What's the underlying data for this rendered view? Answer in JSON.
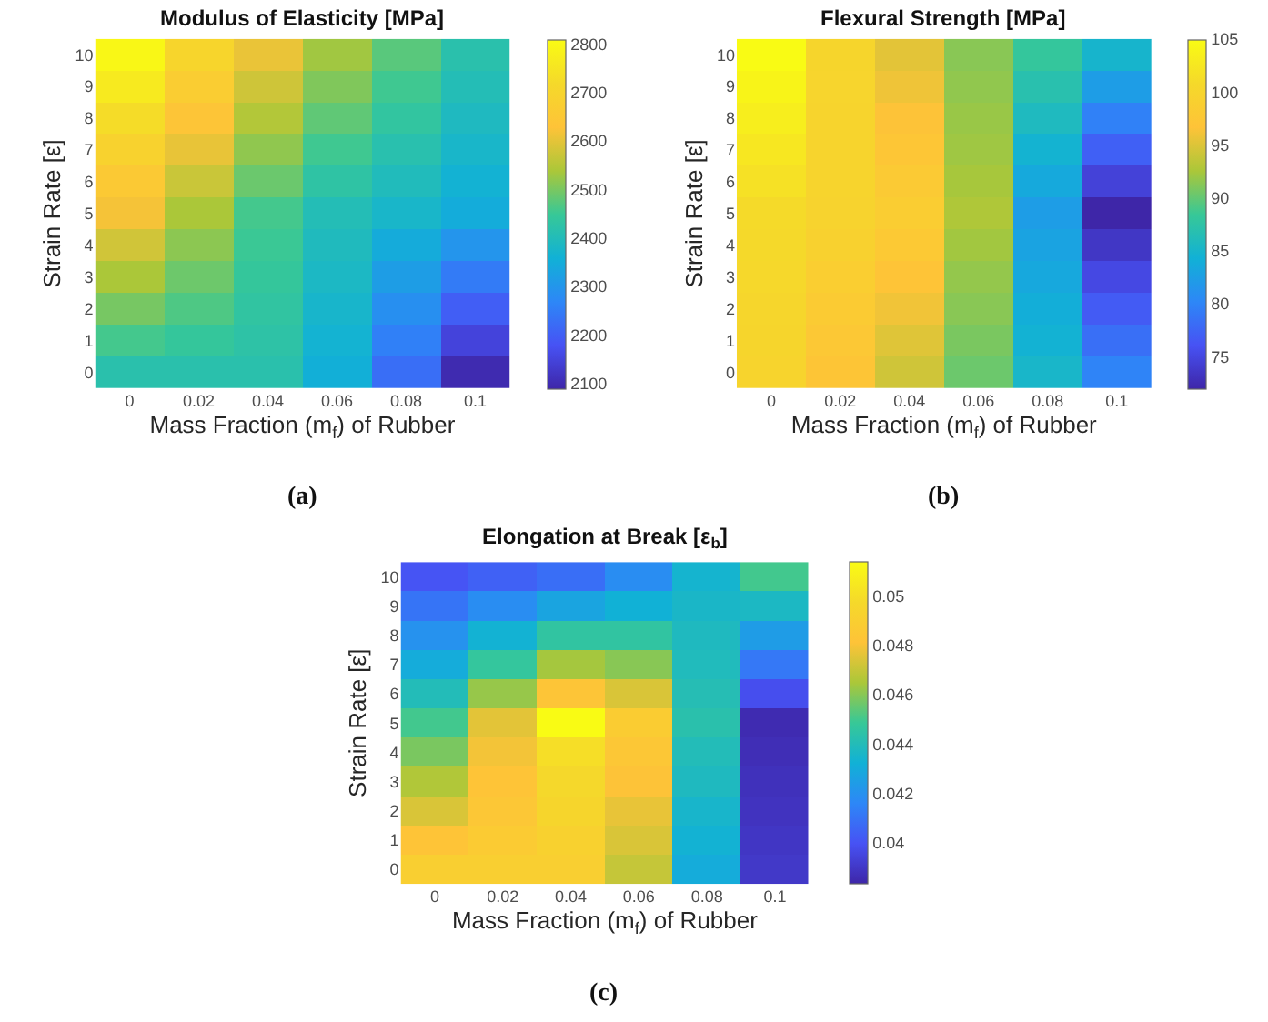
{
  "chart_data": [
    {
      "type": "heatmap",
      "title": "Modulus of Elasticity [MPa]",
      "xlabel": "Mass Fraction (m$_{f}$) of Rubber",
      "ylabel": "Strain Rate [ε̇]",
      "annotations": [
        "(a)"
      ],
      "categories": [
        "0",
        "0.02",
        "0.04",
        "0.06",
        "0.08",
        "0.1"
      ],
      "y_categories": [
        "10",
        "9",
        "8",
        "7",
        "6",
        "5",
        "4",
        "3",
        "2",
        "1",
        "0"
      ],
      "cells": [
        [
          2800,
          2704,
          2608,
          2532,
          2476,
          2420
        ],
        [
          2764,
          2671,
          2578,
          2507,
          2456,
          2406
        ],
        [
          2728,
          2638,
          2549,
          2482,
          2437,
          2392
        ],
        [
          2692,
          2606,
          2519,
          2456,
          2417,
          2378
        ],
        [
          2656,
          2573,
          2490,
          2431,
          2398,
          2364
        ],
        [
          2620,
          2540,
          2460,
          2406,
          2378,
          2350
        ],
        [
          2580,
          2516,
          2452,
          2396,
          2348,
          2300
        ],
        [
          2540,
          2492,
          2444,
          2386,
          2318,
          2250
        ],
        [
          2500,
          2468,
          2436,
          2376,
          2288,
          2200
        ],
        [
          2460,
          2444,
          2428,
          2366,
          2258,
          2150
        ],
        [
          2420,
          2420,
          2420,
          2356,
          2228,
          2100
        ]
      ],
      "clim": [
        2090,
        2810
      ],
      "cticks": [
        2100,
        2200,
        2300,
        2400,
        2500,
        2600,
        2700,
        2800
      ]
    },
    {
      "type": "heatmap",
      "title": "Flexural Strength [MPa]",
      "xlabel": "Mass Fraction (m$_{f}$) of Rubber",
      "ylabel": "Strain Rate [ε̇]",
      "annotations": [
        "(b)"
      ],
      "categories": [
        "0",
        "0.02",
        "0.04",
        "0.06",
        "0.08",
        "0.1"
      ],
      "y_categories": [
        "10",
        "9",
        "8",
        "7",
        "6",
        "5",
        "4",
        "3",
        "2",
        "1",
        "0"
      ],
      "cells": [
        [
          105,
          100.2,
          95.4,
          91.4,
          88.2,
          85
        ],
        [
          104.2,
          100.1,
          96.0,
          91.7,
          87.0,
          82.4
        ],
        [
          103.4,
          100.0,
          96.7,
          92.0,
          85.9,
          79.8
        ],
        [
          102.6,
          100.0,
          97.3,
          92.2,
          84.7,
          77.2
        ],
        [
          101.8,
          99.9,
          98.0,
          92.5,
          83.6,
          74.6
        ],
        [
          101,
          99.8,
          98.6,
          92.8,
          82.4,
          72
        ],
        [
          100.8,
          99.3,
          97.8,
          92.3,
          83.0,
          73.6
        ],
        [
          100.6,
          98.8,
          96.9,
          91.8,
          83.5,
          75.2
        ],
        [
          100.4,
          98.2,
          96.1,
          91.4,
          84.1,
          76.8
        ],
        [
          100.2,
          97.7,
          95.2,
          90.9,
          84.6,
          78.4
        ],
        [
          100,
          97.2,
          94.4,
          90.4,
          85.2,
          80
        ]
      ],
      "clim": [
        72,
        105
      ],
      "cticks": [
        75,
        80,
        85,
        90,
        95,
        100,
        105
      ]
    },
    {
      "type": "heatmap",
      "title": "Elongation at Break [ε$_{b}$]",
      "xlabel": "Mass Fraction (m$_{f}$) of Rubber",
      "ylabel": "Strain Rate [ε̇]",
      "annotations": [
        "(c)"
      ],
      "categories": [
        "0",
        "0.02",
        "0.04",
        "0.06",
        "0.08",
        "0.1"
      ],
      "y_categories": [
        "10",
        "9",
        "8",
        "7",
        "6",
        "5",
        "4",
        "3",
        "2",
        "1",
        "0"
      ],
      "cells": [
        [
          0.04,
          0.0404,
          0.0408,
          0.0418,
          0.0434,
          0.045
        ],
        [
          0.041,
          0.0418,
          0.0427,
          0.0432,
          0.0436,
          0.0437
        ],
        [
          0.042,
          0.0433,
          0.0446,
          0.0446,
          0.0438,
          0.0424
        ],
        [
          0.043,
          0.0447,
          0.0464,
          0.046,
          0.0439,
          0.0411
        ],
        [
          0.044,
          0.0462,
          0.0483,
          0.0474,
          0.0441,
          0.0398
        ],
        [
          0.045,
          0.0476,
          0.0514,
          0.0488,
          0.0443,
          0.0385
        ],
        [
          0.0458,
          0.0479,
          0.05,
          0.0484,
          0.044,
          0.0386
        ],
        [
          0.0466,
          0.0482,
          0.0497,
          0.0481,
          0.0438,
          0.0387
        ],
        [
          0.0474,
          0.0484,
          0.0495,
          0.0477,
          0.0435,
          0.0388
        ],
        [
          0.0482,
          0.0487,
          0.0492,
          0.0474,
          0.0433,
          0.0389
        ],
        [
          0.049,
          0.049,
          0.049,
          0.047,
          0.043,
          0.039
        ]
      ],
      "clim": [
        0.0383,
        0.0514
      ],
      "cticks": [
        0.04,
        0.042,
        0.044,
        0.046,
        0.048,
        0.05
      ]
    }
  ]
}
